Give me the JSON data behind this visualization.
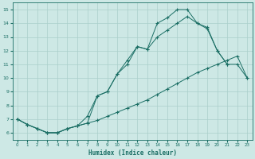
{
  "xlabel": "Humidex (Indice chaleur)",
  "background_color": "#cde8e5",
  "grid_color": "#aacfcb",
  "line_color": "#1a6e64",
  "xlim": [
    -0.5,
    23.5
  ],
  "ylim": [
    5.5,
    15.5
  ],
  "xticks": [
    0,
    1,
    2,
    3,
    4,
    5,
    6,
    7,
    8,
    9,
    10,
    11,
    12,
    13,
    14,
    15,
    16,
    17,
    18,
    19,
    20,
    21,
    22,
    23
  ],
  "yticks": [
    6,
    7,
    8,
    9,
    10,
    11,
    12,
    13,
    14,
    15
  ],
  "series1_x": [
    0,
    1,
    2,
    3,
    4,
    5,
    6,
    7,
    8,
    9,
    10,
    11,
    12,
    13,
    14,
    15,
    16,
    17,
    18,
    19,
    20,
    21,
    22,
    23
  ],
  "series1_y": [
    7.0,
    6.6,
    6.3,
    6.0,
    6.0,
    6.3,
    6.5,
    6.7,
    6.9,
    7.2,
    7.5,
    7.8,
    8.1,
    8.4,
    8.8,
    9.2,
    9.6,
    10.0,
    10.4,
    10.7,
    11.0,
    11.3,
    11.6,
    10.0
  ],
  "series2_x": [
    0,
    1,
    2,
    3,
    4,
    5,
    6,
    7,
    8,
    9,
    10,
    11,
    12,
    13,
    14,
    15,
    16,
    17,
    18,
    19,
    20,
    21
  ],
  "series2_y": [
    7.0,
    6.6,
    6.3,
    6.0,
    6.0,
    6.3,
    6.5,
    6.7,
    8.7,
    9.0,
    10.3,
    11.3,
    12.3,
    12.1,
    14.0,
    14.4,
    15.0,
    15.0,
    14.0,
    13.7,
    12.0,
    11.0
  ],
  "series3_x": [
    0,
    1,
    2,
    3,
    4,
    5,
    6,
    7,
    8,
    9,
    10,
    11,
    12,
    13,
    14,
    15,
    16,
    17,
    18,
    19,
    20,
    21,
    22,
    23
  ],
  "series3_y": [
    7.0,
    6.6,
    6.3,
    6.0,
    6.0,
    6.3,
    6.5,
    7.2,
    8.7,
    9.0,
    10.3,
    11.0,
    12.3,
    12.1,
    13.0,
    13.5,
    14.0,
    14.5,
    14.0,
    13.6,
    12.0,
    11.0,
    11.0,
    10.0
  ]
}
